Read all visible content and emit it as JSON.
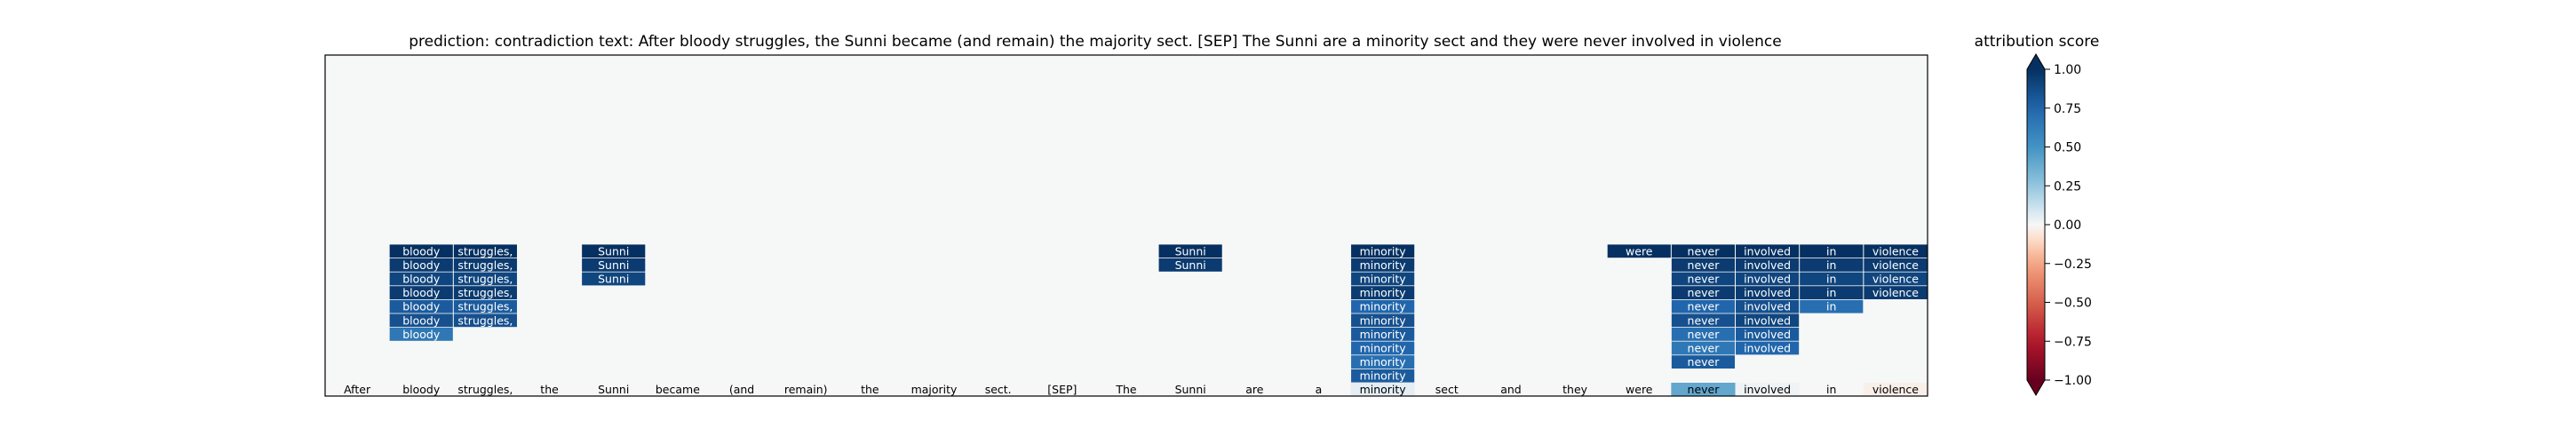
{
  "chart_data": {
    "type": "heatmap",
    "title": "prediction:  contradiction     text:  After bloody struggles, the Sunni became (and remain) the majority sect. [SEP] The Sunni are a minority sect and they were never involved in violence",
    "tokens": [
      "After",
      "bloody",
      "struggles,",
      "the",
      "Sunni",
      "became",
      "(and",
      "remain)",
      "the",
      "majority",
      "sect.",
      "[SEP]",
      "The",
      "Sunni",
      "are",
      "a",
      "minority",
      "sect",
      "and",
      "they",
      "were",
      "never",
      "involved",
      "in",
      "violence"
    ],
    "base_row": {
      "labels": [
        "After",
        "bloody",
        "struggles,",
        "the",
        "Sunni",
        "became",
        "(and",
        "remain)",
        "the",
        "majority",
        "sect.",
        "[SEP]",
        "The",
        "Sunni",
        "are",
        "a",
        "minority",
        "sect",
        "and",
        "they",
        "were",
        "never",
        "involved",
        "in",
        "violence"
      ],
      "values": [
        0.0,
        0.0,
        0.0,
        0.0,
        0.0,
        0.0,
        0.0,
        0.0,
        0.0,
        0.0,
        0.0,
        0.0,
        0.0,
        0.0,
        0.0,
        0.0,
        0.05,
        0.0,
        0.0,
        0.0,
        0.0,
        0.4,
        0.02,
        0.0,
        -0.03
      ]
    },
    "stack_rows": 10,
    "stacks": [
      {
        "column": 1,
        "label": "bloody",
        "values": [
          1.0,
          0.95,
          0.9,
          0.95,
          0.8,
          0.85,
          0.65
        ]
      },
      {
        "column": 2,
        "label": "struggles,",
        "values": [
          1.0,
          0.95,
          0.9,
          0.95,
          0.8,
          0.85
        ]
      },
      {
        "column": 4,
        "label": "Sunni",
        "values": [
          1.0,
          0.95,
          0.9
        ]
      },
      {
        "column": 13,
        "label": "Sunni",
        "values": [
          1.0,
          0.95
        ]
      },
      {
        "column": 16,
        "label": "minority",
        "values": [
          1.0,
          0.95,
          0.9,
          0.95,
          0.75,
          0.85,
          0.8,
          0.75,
          0.7,
          0.8
        ]
      },
      {
        "column": 20,
        "label": "were",
        "values": [
          1.0
        ]
      },
      {
        "column": 21,
        "label": "never",
        "values": [
          1.0,
          0.95,
          0.9,
          0.95,
          0.75,
          0.85,
          0.7,
          0.65,
          0.8
        ]
      },
      {
        "column": 22,
        "label": "involved",
        "values": [
          1.0,
          0.95,
          0.9,
          0.95,
          0.85,
          0.9,
          0.8,
          0.75
        ]
      },
      {
        "column": 23,
        "label": "in",
        "values": [
          1.0,
          0.95,
          0.9,
          0.95,
          0.7
        ]
      },
      {
        "column": 24,
        "label": "violence",
        "values": [
          1.0,
          0.95,
          0.9,
          0.95
        ]
      }
    ],
    "colorbar": {
      "label": "attribution score",
      "range": [
        -1.0,
        1.0
      ],
      "ticks": [
        1.0,
        0.75,
        0.5,
        0.25,
        0.0,
        -0.25,
        -0.5,
        -0.75,
        -1.0
      ],
      "tick_labels": [
        "1.00",
        "0.75",
        "0.50",
        "0.25",
        "0.00",
        "−0.25",
        "−0.50",
        "−0.75",
        "−1.00"
      ],
      "colormap": "RdBu",
      "extend": "both"
    },
    "background_color": "#f6f7f7",
    "grid": false
  }
}
